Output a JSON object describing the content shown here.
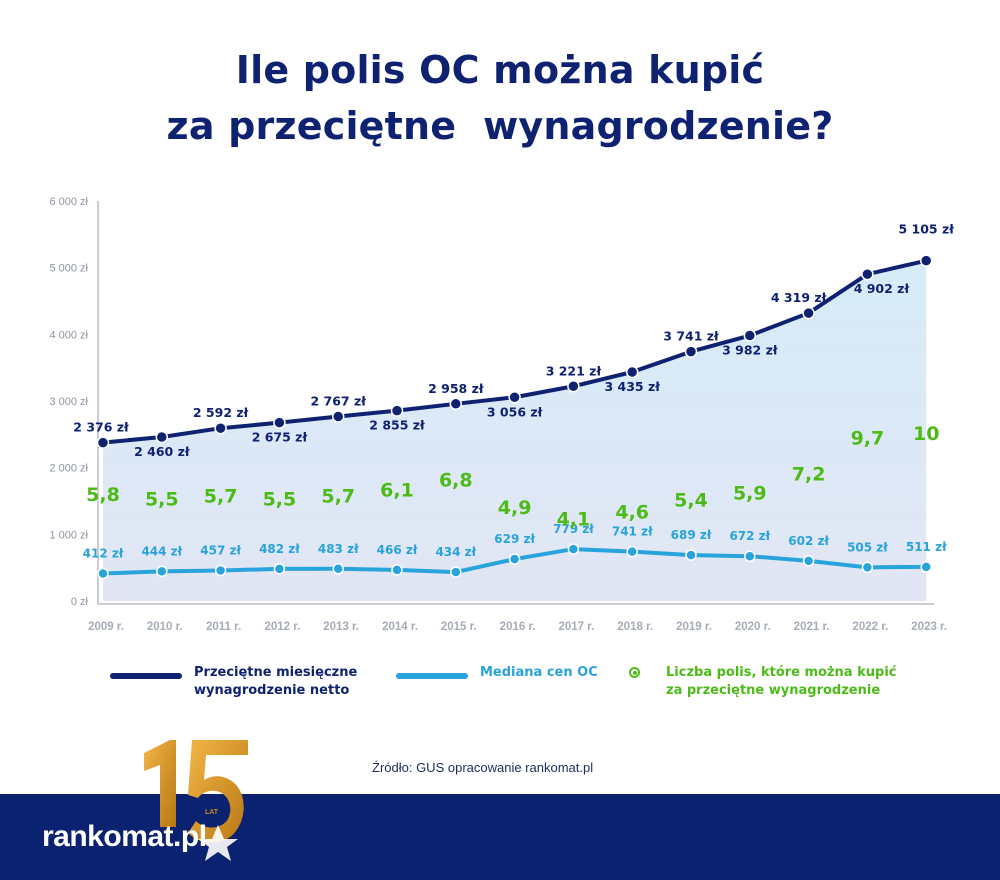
{
  "title_line1": "Ile polis OC można kupić",
  "title_line2": "za przeciętne  wynagrodzenie?",
  "legend": {
    "salary": "Przeciętne miesięczne\nwynagrodzenie netto",
    "median": "Mediana cen OC",
    "count": "Liczba polis, które można kupić\nza przeciętne wynagrodzenie"
  },
  "source": "Źródło: GUS opracowanie rankomat.pl",
  "brand": {
    "logo_text": "rankomat.pl",
    "badge_number": "15",
    "badge_label": "LAT"
  },
  "colors": {
    "salary": "#0f2272",
    "median": "#29a3dc",
    "count": "#4cbb17",
    "footer": "#0b2270",
    "gold": "#d79a28"
  },
  "chart_data": {
    "type": "line",
    "categories": [
      "2009 r.",
      "2010 r.",
      "2011 r.",
      "2012 r.",
      "2013 r.",
      "2014 r.",
      "2015 r.",
      "2016 r.",
      "2017 r.",
      "2018 r.",
      "2019 r.",
      "2020 r.",
      "2021 r.",
      "2022 r.",
      "2023 r."
    ],
    "ylim": [
      0,
      6000
    ],
    "yticks": [
      0,
      1000,
      2000,
      3000,
      4000,
      5000,
      6000
    ],
    "ytick_labels": [
      "0 zł",
      "1 000 zł",
      "2 000 zł",
      "3 000 zł",
      "4 000 zł",
      "5 000 zł",
      "6 000 zł"
    ],
    "series": [
      {
        "name": "Przeciętne miesięczne wynagrodzenie netto",
        "values": [
          2376,
          2460,
          2592,
          2675,
          2767,
          2855,
          2958,
          3056,
          3221,
          3435,
          3741,
          3982,
          4319,
          4902,
          5105
        ],
        "labels": [
          "2 376 zł",
          "2 460 zł",
          "2 592 zł",
          "2 675 zł",
          "2 767 zł",
          "2 855 zł",
          "2 958 zł",
          "3 056 zł",
          "3 221 zł",
          "3 435 zł",
          "3 741 zł",
          "3 982 zł",
          "4 319 zł",
          "4 902 zł",
          "5 105 zł"
        ]
      },
      {
        "name": "Mediana cen OC",
        "values": [
          412,
          444,
          457,
          482,
          483,
          466,
          434,
          629,
          779,
          741,
          689,
          672,
          602,
          505,
          511
        ],
        "labels": [
          "412 zł",
          "444 zł",
          "457 zł",
          "482 zł",
          "483 zł",
          "466 zł",
          "434 zł",
          "629 zł",
          "779 zł",
          "741 zł",
          "689 zł",
          "672 zł",
          "602 zł",
          "505 zł",
          "511 zł"
        ]
      },
      {
        "name": "Liczba polis, które można kupić za przeciętne wynagrodzenie",
        "values": [
          5.8,
          5.5,
          5.7,
          5.5,
          5.7,
          6.1,
          6.8,
          4.9,
          4.1,
          4.6,
          5.4,
          5.9,
          7.2,
          9.7,
          10
        ],
        "labels": [
          "5,8",
          "5,5",
          "5,7",
          "5,5",
          "5,7",
          "6,1",
          "6,8",
          "4,9",
          "4,1",
          "4,6",
          "5,4",
          "5,9",
          "7,2",
          "9,7",
          "10"
        ]
      }
    ],
    "grid": false,
    "legend_position": "bottom"
  }
}
